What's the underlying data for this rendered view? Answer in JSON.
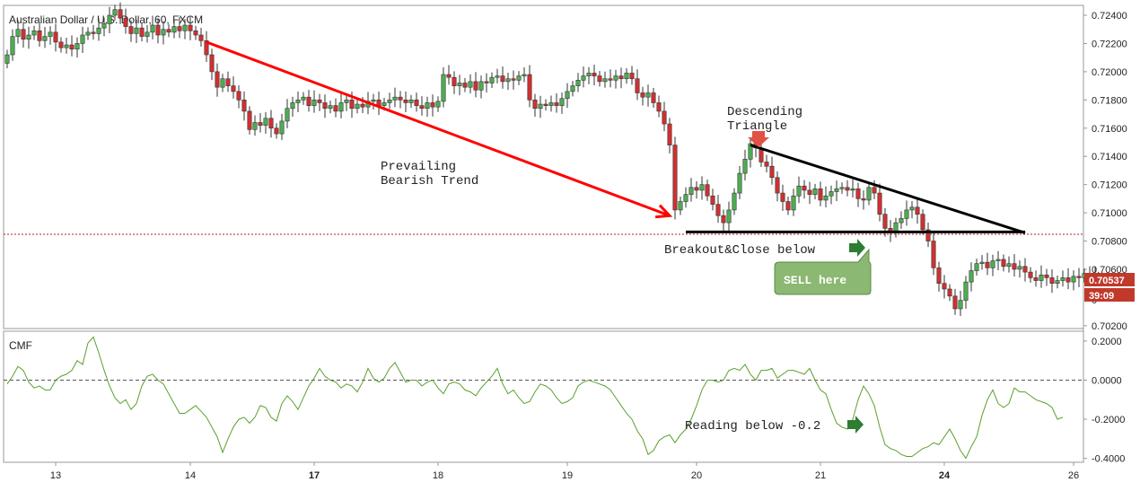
{
  "chart_title": "Australian Dollar / U.S. Dollar, 60, FXCM",
  "price_labels": [
    "0.72400",
    "0.72200",
    "0.72000",
    "0.71800",
    "0.71600",
    "0.71400",
    "0.71200",
    "0.71000",
    "0.70800",
    "0.70600",
    "0.70200"
  ],
  "price_axis_partial": "0",
  "current_price": "0.70537",
  "countdown": "39:09",
  "cmf_title": "CMF",
  "cmf_labels": [
    "0.2000",
    "0.0000",
    "-0.2000",
    "-0.4000"
  ],
  "x_labels": [
    {
      "text": "13",
      "bold": false
    },
    {
      "text": "14",
      "bold": false
    },
    {
      "text": "17",
      "bold": true
    },
    {
      "text": "18",
      "bold": false
    },
    {
      "text": "19",
      "bold": false
    },
    {
      "text": "20",
      "bold": false
    },
    {
      "text": "21",
      "bold": false
    },
    {
      "text": "24",
      "bold": true
    },
    {
      "text": "26",
      "bold": false
    }
  ],
  "annotations": {
    "trend_line1": "Prevailing",
    "trend_line2": "Bearish Trend",
    "triangle_line1": "Descending",
    "triangle_line2": "Triangle",
    "breakout": "Breakout&Close below",
    "sell": "SELL here",
    "cmf_reading": "Reading below -0.2"
  },
  "colors": {
    "bull": "#4caf50",
    "bear": "#d32f2f",
    "cmf_line": "#5aa02c",
    "trend": "#ff0000",
    "triangle": "#000000",
    "support_dotted": "#b22222",
    "price_badge": "#c0392b",
    "sell_box": "#8bb872",
    "arrow_green": "#2e7d32"
  },
  "chart_data": {
    "type": "candlestick",
    "title": "Australian Dollar / U.S. Dollar, 60, FXCM",
    "ylim": [
      0.7018,
      0.7247
    ],
    "closes": [
      0.7212,
      0.7225,
      0.723,
      0.7223,
      0.7226,
      0.7229,
      0.7222,
      0.7225,
      0.7228,
      0.7221,
      0.7217,
      0.7219,
      0.7216,
      0.722,
      0.7226,
      0.7228,
      0.7227,
      0.7231,
      0.7234,
      0.724,
      0.7244,
      0.7238,
      0.7232,
      0.7227,
      0.7231,
      0.7225,
      0.7228,
      0.7233,
      0.7226,
      0.723,
      0.7228,
      0.7232,
      0.7229,
      0.7233,
      0.7229,
      0.7226,
      0.7222,
      0.7212,
      0.72,
      0.7189,
      0.7195,
      0.719,
      0.7186,
      0.718,
      0.7172,
      0.7159,
      0.7164,
      0.7162,
      0.7167,
      0.716,
      0.7156,
      0.7165,
      0.7174,
      0.7178,
      0.718,
      0.7182,
      0.7176,
      0.718,
      0.7178,
      0.7174,
      0.7176,
      0.7172,
      0.7178,
      0.718,
      0.7174,
      0.7177,
      0.7175,
      0.7179,
      0.718,
      0.7176,
      0.7178,
      0.718,
      0.7182,
      0.718,
      0.7178,
      0.718,
      0.7176,
      0.7174,
      0.7178,
      0.7175,
      0.7179,
      0.7198,
      0.7196,
      0.719,
      0.7192,
      0.7189,
      0.7193,
      0.7187,
      0.7193,
      0.7192,
      0.7196,
      0.7197,
      0.7193,
      0.7195,
      0.7194,
      0.7197,
      0.7198,
      0.718,
      0.7174,
      0.7177,
      0.7176,
      0.7178,
      0.7176,
      0.7181,
      0.7186,
      0.719,
      0.7194,
      0.7197,
      0.7199,
      0.7197,
      0.7193,
      0.7195,
      0.7194,
      0.7197,
      0.7195,
      0.7199,
      0.7195,
      0.7185,
      0.7182,
      0.7185,
      0.7178,
      0.7172,
      0.7163,
      0.7148,
      0.7102,
      0.7108,
      0.7113,
      0.7118,
      0.7116,
      0.712,
      0.7112,
      0.7106,
      0.7098,
      0.7093,
      0.7102,
      0.7114,
      0.7128,
      0.7138,
      0.7149,
      0.7146,
      0.7136,
      0.7133,
      0.7125,
      0.7114,
      0.7108,
      0.7102,
      0.7112,
      0.7119,
      0.7116,
      0.7113,
      0.7117,
      0.7109,
      0.7112,
      0.7115,
      0.7117,
      0.7118,
      0.7116,
      0.7117,
      0.711,
      0.7109,
      0.7118,
      0.7114,
      0.7099,
      0.7089,
      0.7086,
      0.7093,
      0.7096,
      0.7102,
      0.7104,
      0.7099,
      0.7088,
      0.708,
      0.7061,
      0.705,
      0.7046,
      0.7041,
      0.7032,
      0.7038,
      0.7051,
      0.7059,
      0.7064,
      0.7065,
      0.7061,
      0.7066,
      0.7067,
      0.7062,
      0.7064,
      0.706,
      0.7062,
      0.7058,
      0.7054,
      0.7052,
      0.7056,
      0.7054,
      0.705,
      0.7052,
      0.7054,
      0.7051,
      0.7055,
      0.7054,
      0.7057,
      0.7055,
      0.7055
    ],
    "cmf_ylim": [
      -0.42,
      0.25
    ],
    "cmf": [
      -0.02,
      0.02,
      0.07,
      0.05,
      -0.01,
      -0.04,
      -0.03,
      -0.05,
      -0.05,
      0.0,
      0.02,
      0.03,
      0.05,
      0.1,
      0.08,
      0.19,
      0.22,
      0.14,
      0.05,
      -0.03,
      -0.09,
      -0.12,
      -0.1,
      -0.15,
      -0.12,
      -0.03,
      0.02,
      0.03,
      0.0,
      -0.02,
      -0.07,
      -0.12,
      -0.17,
      -0.17,
      -0.15,
      -0.13,
      -0.16,
      -0.19,
      -0.24,
      -0.29,
      -0.37,
      -0.3,
      -0.24,
      -0.2,
      -0.19,
      -0.22,
      -0.19,
      -0.13,
      -0.14,
      -0.19,
      -0.21,
      -0.12,
      -0.08,
      -0.11,
      -0.15,
      -0.09,
      -0.03,
      0.01,
      0.06,
      0.02,
      0.0,
      -0.01,
      -0.04,
      -0.02,
      -0.03,
      -0.06,
      -0.01,
      0.06,
      0.01,
      -0.01,
      0.01,
      0.06,
      0.09,
      0.04,
      -0.01,
      0.0,
      0.0,
      -0.03,
      -0.01,
      0.0,
      -0.04,
      -0.07,
      -0.02,
      -0.01,
      -0.02,
      -0.05,
      -0.06,
      -0.08,
      -0.04,
      -0.01,
      0.02,
      0.06,
      -0.02,
      -0.07,
      -0.05,
      -0.09,
      -0.12,
      -0.11,
      -0.06,
      -0.02,
      -0.03,
      -0.05,
      -0.09,
      -0.12,
      -0.11,
      -0.09,
      -0.03,
      -0.01,
      0.0,
      -0.01,
      -0.02,
      -0.03,
      -0.05,
      -0.09,
      -0.13,
      -0.17,
      -0.2,
      -0.26,
      -0.3,
      -0.38,
      -0.36,
      -0.31,
      -0.29,
      -0.28,
      -0.32,
      -0.28,
      -0.25,
      -0.2,
      -0.13,
      -0.05,
      0.0,
      0.0,
      -0.01,
      0.0,
      0.05,
      0.06,
      0.05,
      0.08,
      0.03,
      0.0,
      0.05,
      0.05,
      0.06,
      0.01,
      0.03,
      0.05,
      0.05,
      0.04,
      0.03,
      0.06,
      0.0,
      -0.05,
      -0.07,
      -0.15,
      -0.22,
      -0.24,
      -0.25,
      -0.2,
      -0.1,
      -0.03,
      -0.07,
      -0.13,
      -0.24,
      -0.33,
      -0.35,
      -0.36,
      -0.38,
      -0.39,
      -0.39,
      -0.37,
      -0.35,
      -0.34,
      -0.32,
      -0.33,
      -0.29,
      -0.25,
      -0.3,
      -0.36,
      -0.4,
      -0.34,
      -0.29,
      -0.18,
      -0.1,
      -0.05,
      -0.12,
      -0.14,
      -0.12,
      -0.04,
      -0.06,
      -0.06,
      -0.08,
      -0.1,
      -0.11,
      -0.12,
      -0.14,
      -0.2,
      -0.19
    ],
    "support_level": 0.70848,
    "trend_line": {
      "from": [
        37,
        0.7221
      ],
      "to": [
        123,
        0.7098
      ]
    },
    "triangle_upper": {
      "from": [
        138,
        0.7148
      ],
      "to": [
        189,
        0.70858
      ]
    },
    "triangle_lower": {
      "from": [
        126,
        0.70865
      ],
      "to": [
        189,
        0.70865
      ]
    }
  }
}
